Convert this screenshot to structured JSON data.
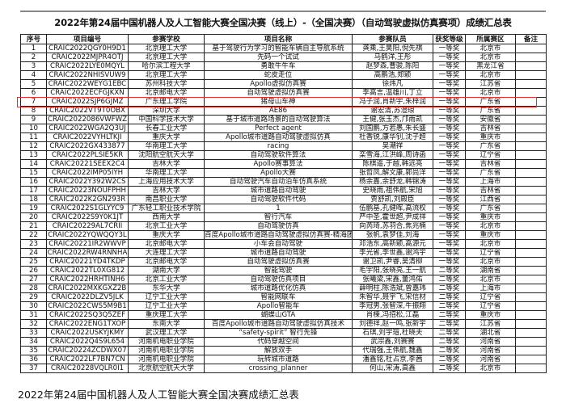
{
  "title": "2022年第24届中国机器人及人工智能大赛全国决赛（线上）-（全国决赛）（自动驾驶虚拟仿真赛项）成绩汇总表",
  "headers": [
    "序号",
    "项目编号",
    "参赛学校",
    "项目名称",
    "参赛队员",
    "获奖等级",
    "所属赛区",
    "备注"
  ],
  "highlight_color": "#e0302c",
  "highlighted_row": 7,
  "rows": [
    [
      "1",
      "CRAIC2022QGY0H9D1",
      "北京理工大学",
      "基于驾驶行为学习的智能车辆自主导航系统",
      "龚乘,王昊阳,倪先祺",
      "一等奖",
      "北京市",
      ""
    ],
    [
      "2",
      "CRAIC2022MJPR4OTJ",
      "北京理工大学",
      "先码一个试试",
      "马鹤洋,王彤",
      "一等奖",
      "北京市",
      ""
    ],
    [
      "3",
      "CRAIC2022LYE0MQYL",
      "哈尔滨工程大学",
      "勇敢牛牛车",
      "赵梦森,曹骏,陈阳",
      "一等奖",
      "黑龙江省",
      ""
    ],
    [
      "4",
      "CRAIC2022NHISVUW9",
      "北京理工大学",
      "蛇皮走位",
      "高鹏浩,郑颖",
      "一等奖",
      "北京市",
      ""
    ],
    [
      "5",
      "CRAIC2022WEYG1EBC",
      "苏州科技大学",
      "Apollo虚拟仿真赛",
      "徐炜凡",
      "一等奖",
      "江苏省",
      ""
    ],
    [
      "6",
      "CRAIC2022ECFGJKXN",
      "北京邮电大学",
      "自动驾驶虚拟仿真赛",
      "李高言,温雄川,丁立",
      "一等奖",
      "北京市",
      ""
    ],
    [
      "7",
      "CRAIC2022SJP6GJMZ",
      "广东理工学院",
      "猪母山车神",
      "冯子润,肖新宇,朱梓润",
      "一等奖",
      "广东省",
      ""
    ],
    [
      "8",
      "CRAIC2022VT9T0OBX",
      "深圳大学",
      "AE86",
      "谢宏清,苏澄琅",
      "一等奖",
      "广东省",
      ""
    ],
    [
      "9",
      "CRAIC2022086VWFWZ",
      "中国科学技术大学",
      "基于城市道路场景的自动驾驶算法",
      "王健,张玉杰,邝雨凯",
      "一等奖",
      "安徽省",
      ""
    ],
    [
      "10",
      "CRAIC2022WGA2Q3UJ",
      "长春工业大学",
      "Perfect agent",
      "刘国鹏,方若愚,朱长盛",
      "一等奖",
      "吉林省",
      ""
    ],
    [
      "11",
      "CRAIC2022VYHLTKJI",
      "重庆大学",
      "Apollo城市道路自动驾驶虚拟仿真",
      "杜香锐,康华钊,沈子超",
      "一等奖",
      "重庆市",
      ""
    ],
    [
      "12",
      "CRAIC2022GX433877",
      "华南理工大学",
      "racing",
      "吴潮祥",
      "一等奖",
      "广东省",
      ""
    ],
    [
      "13",
      "CRAIC2022PLSIE5KR",
      "沈阳航空航天大学",
      "自动驾驶软件算法",
      "栾雪海,江洪峰,周诗函",
      "一等奖",
      "辽宁省",
      ""
    ],
    [
      "14",
      "CRAIC20221SEEX2C4",
      "吉林大学",
      "Apollo赛事算法",
      "陈棋遥,于越,韩远亮",
      "一等奖",
      "吉林省",
      ""
    ],
    [
      "15",
      "CRAIC2022IMP05IYH",
      "华南理工大学",
      "Apollo大赛",
      "张哲凤,解文康,郭尚洋",
      "一等奖",
      "广东省",
      ""
    ],
    [
      "16",
      "CRAIC2022Y392W2CS",
      "上海应用技术大学",
      "自动驾驶汽车自动泊车仿真系统",
      "杨余嘉,余舒龙,韩锦涛",
      "一等奖",
      "上海市",
      ""
    ],
    [
      "17",
      "CRAIC20223NOUFPHH",
      "吉林大学",
      "城市道路自动驾驶",
      "史晓雨,祖伟航,宋旭",
      "一等奖",
      "吉林省",
      ""
    ],
    [
      "18",
      "CRAIC2022K2GN293R",
      "南昌职业大学",
      "自动驾驶软件代码",
      "贾舒凯,刘殿臣",
      "一等奖",
      "江西省",
      ""
    ],
    [
      "19",
      "CRAIC2022S1GLYYC9",
      "广东轻工职业技术学院",
      "1",
      "伍鹏基,孔健晖,高流权",
      "一等奖",
      "广东省",
      ""
    ],
    [
      "20",
      "CRAIC2022S9Y0K1JT",
      "西南大学",
      "智行汽车",
      "严中圣,霍世超,尹成祥",
      "一等奖",
      "重庆市",
      ""
    ],
    [
      "21",
      "CRAIC20229AL7CRII",
      "北京工业大学",
      "自动驾驶仿真",
      "向芮琦,苏羽合,焦兆楠",
      "一等奖",
      "北京市",
      ""
    ],
    [
      "22",
      "CRAIC2022YQWQQY3L",
      "重庆大学",
      "百度Apollo城市道路自动驾驶虚拟仿真赛-精海团队作",
      "张帆,袁梦佳,刘海",
      "一等奖",
      "重庆市",
      ""
    ],
    [
      "23",
      "CRAIC20221IR2WWVP",
      "北京邮电大学",
      "小车会自动驾驶",
      "邓浩东,高新颖,高源元",
      "一等奖",
      "北京市",
      ""
    ],
    [
      "24",
      "CRAIC2022RW4RNNHA",
      "大连理工大学",
      "城市道路自动驾驶",
      "李光省,李世鑫,谢鸿宇",
      "一等奖",
      "辽宁省",
      ""
    ],
    [
      "25",
      "CRAIC20221YD4TKDP",
      "北京邮电大学",
      "自动驾驶虚拟仿真赛",
      "谢卫凯,尹睿,吴清柳",
      "一等奖",
      "北京市",
      ""
    ],
    [
      "26",
      "CRAIC2022TL0XG812",
      "湖南大学",
      "智能驾驶",
      "毛宇阳,张晓亮,王一航",
      "二等奖",
      "湖南省",
      ""
    ],
    [
      "27",
      "CRAIC2022HRHTINH6",
      "北京工业大学",
      "自动驾驶仿真项目",
      "张曦梁,宋鑫,董鸿佑",
      "二等奖",
      "北京市",
      ""
    ],
    [
      "28",
      "CRAIC2022MXKGXZ2B",
      "东华大学",
      "城市道路优化仿真",
      "薛明柱,陈浩斌,曾嘉玮",
      "二等奖",
      "上海市",
      ""
    ],
    [
      "29",
      "CRAIC2022DLZV5JLK",
      "辽宁工业大学",
      "智能网联车",
      "朱智华,聂宇飞,宋信材",
      "二等奖",
      "辽宁省",
      ""
    ],
    [
      "30",
      "CRAIC2022CWS5M9B1",
      "辽宁工业大学",
      "Apollo智能车",
      "李冠男,张智深,牛振翔",
      "二等奖",
      "辽宁省",
      ""
    ],
    [
      "31",
      "CRAIC2022SQ3Q5ZEF",
      "重庆理工大学",
      "蝴蝶山GTA",
      "肖楝,冯招松,江磊",
      "二等奖",
      "重庆市",
      ""
    ],
    [
      "32",
      "CRAIC2022ENG1TXOP",
      "东南大学",
      "百度Apollo城市道路自动驾驶虚拟仿真技术",
      "刘德祥,赵一鸣,张新宇",
      "二等奖",
      "江苏省",
      ""
    ],
    [
      "33",
      "CRAIC2022USKYJKMY",
      "武汉理工大学",
      "“safety-spirit” 智行先锋",
      "石琪,刘宇瑄,杜晓夫",
      "二等奖",
      "湖北省",
      ""
    ],
    [
      "34",
      "CRAIC2022Q4S9L654",
      "河南机电职业学院",
      "代码穿越空间",
      "武宗鑫,刘赛赛",
      "二等奖",
      "河南省",
      ""
    ],
    [
      "35",
      "CRAIC20224ZCDWX07",
      "河南机电职业学院",
      "解放双手",
      "代瑞强,王伟航,魏鑫",
      "二等奖",
      "河南省",
      ""
    ],
    [
      "36",
      "CRAIC2022LF7BN7CN",
      "河南机电职业学院",
      "玩转城市道路",
      "潘鑫铭,杜占京,李茜",
      "二等奖",
      "河南省",
      ""
    ],
    [
      "37",
      "CRAIC20228VQLR0I1",
      "北京航空航天大学",
      "crossing_planner",
      "何山,宋涛,高鑫",
      "二等奖",
      "北京市",
      ""
    ]
  ],
  "caption": "2022年第24届中国机器人及人工智能大赛全国决赛成绩汇总表"
}
